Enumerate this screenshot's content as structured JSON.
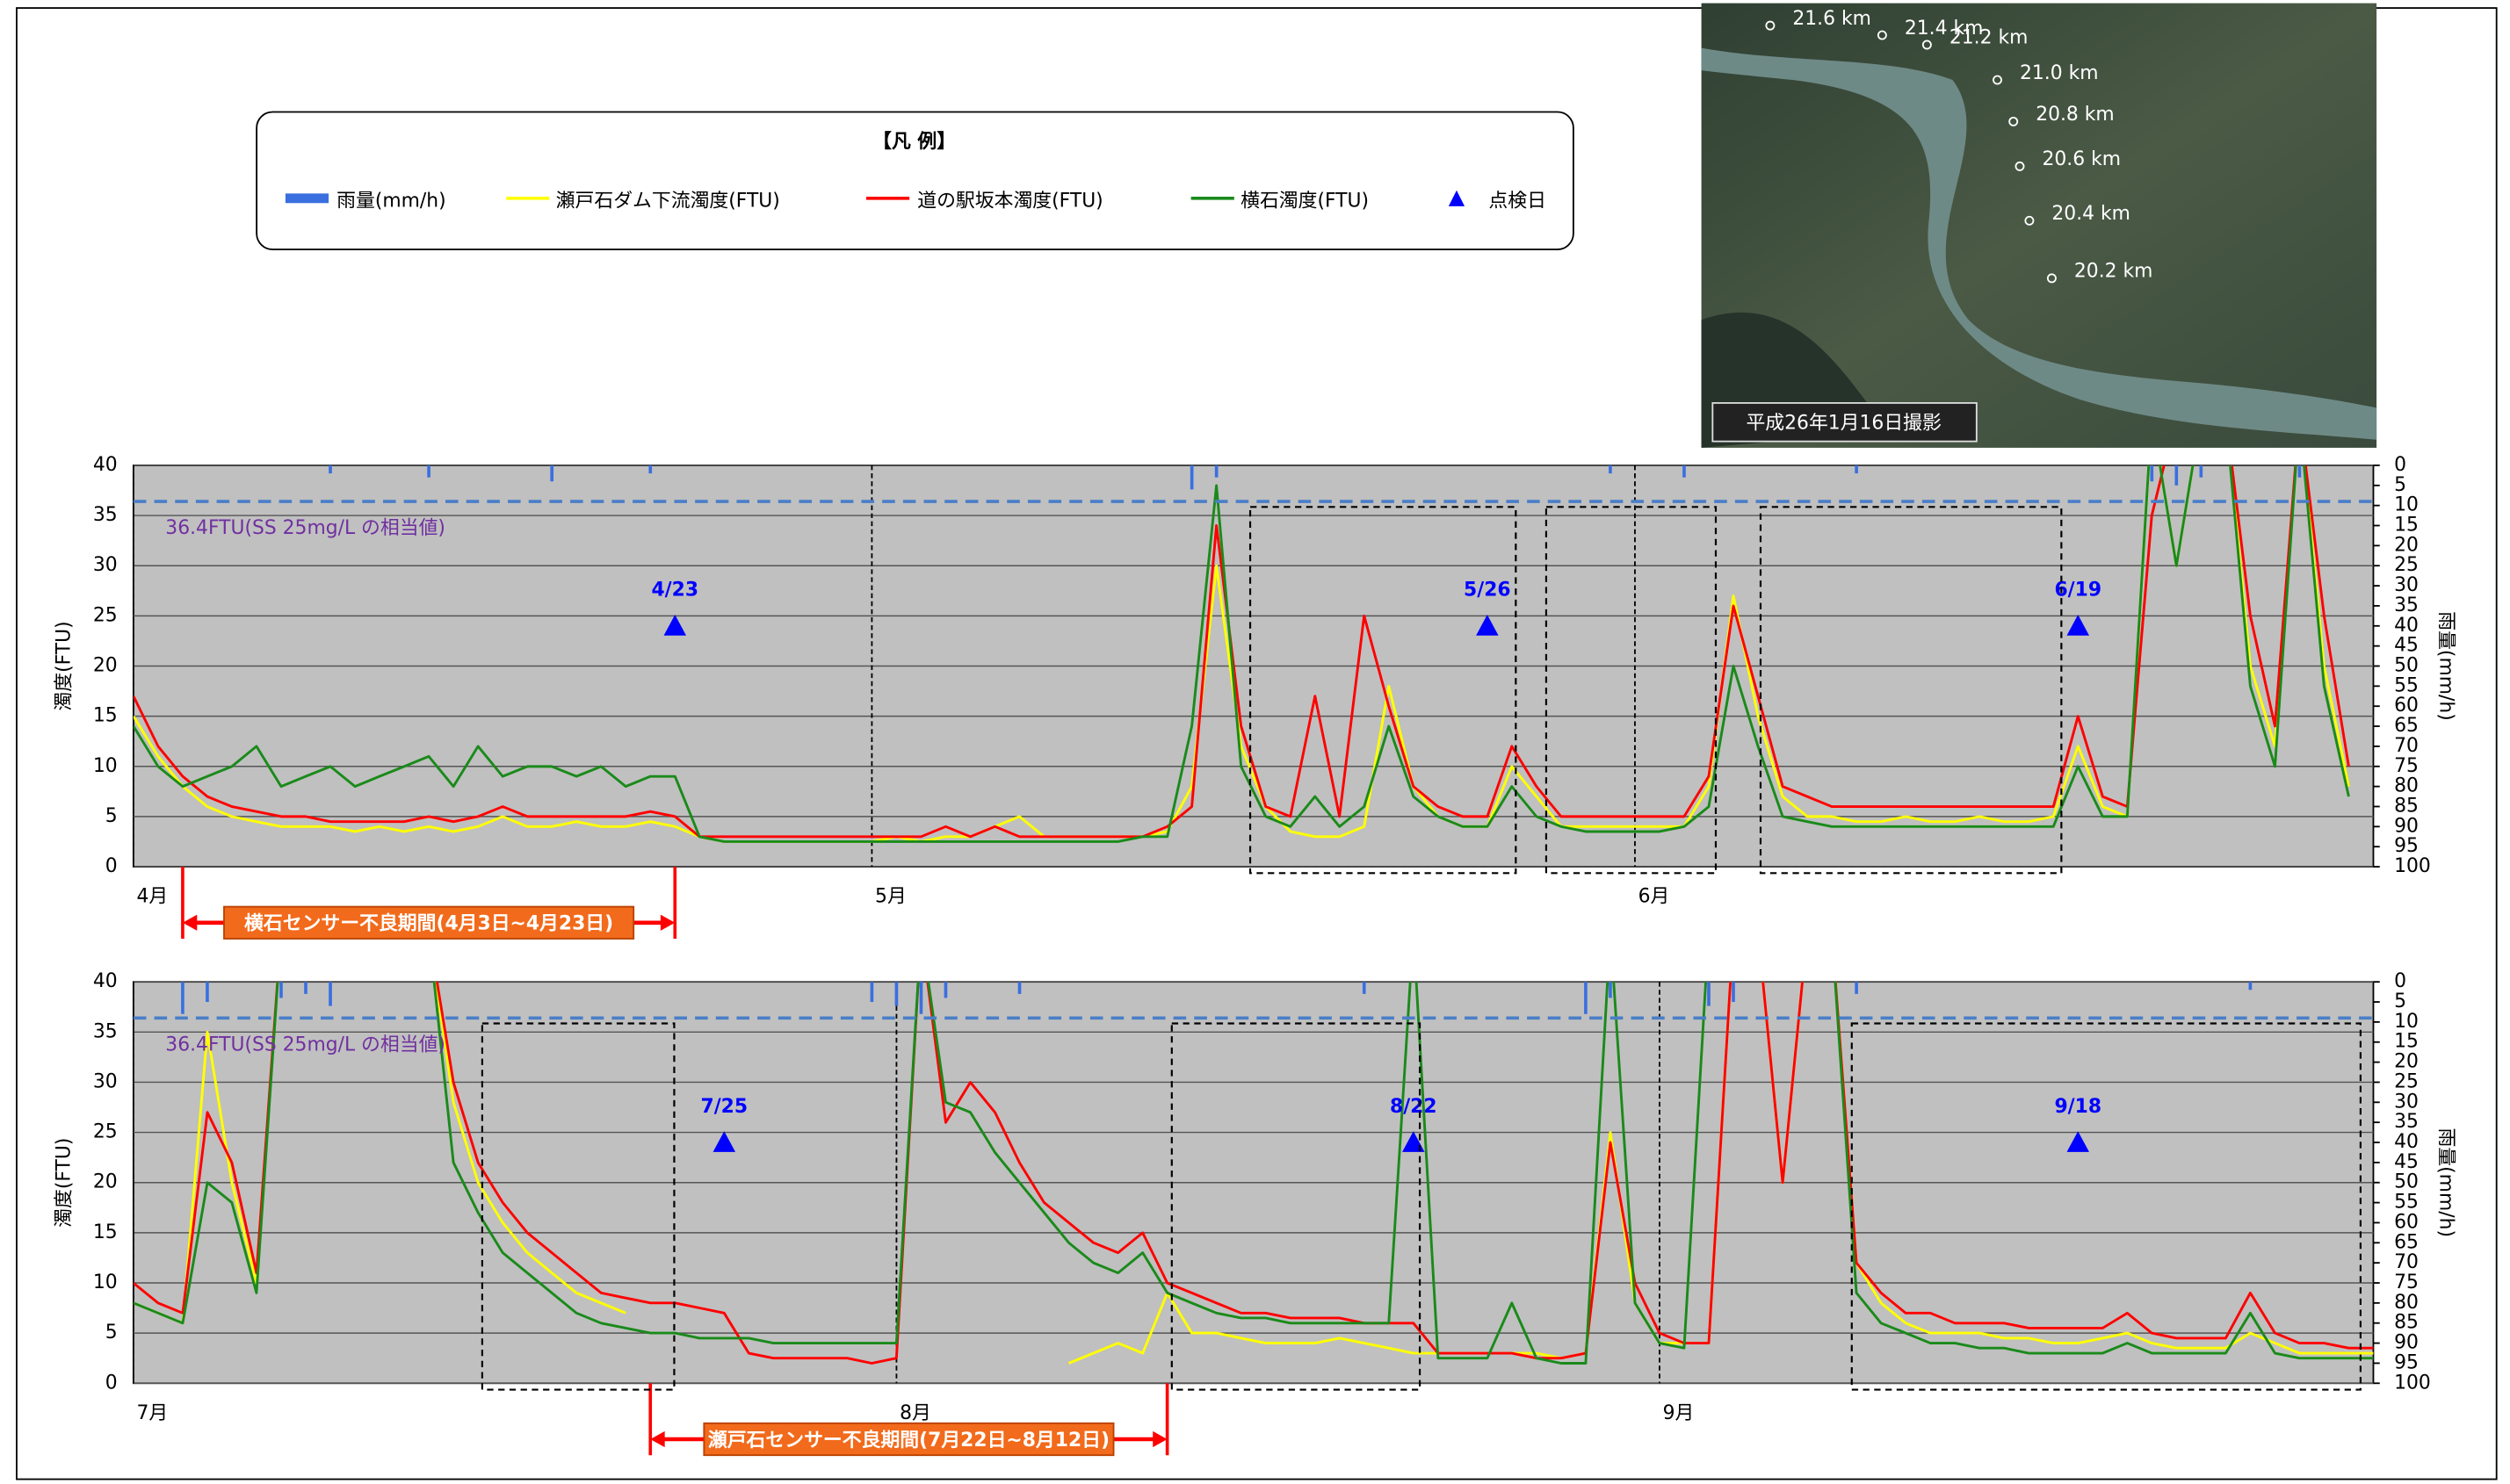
{
  "legend": {
    "title": "【凡 例】",
    "inspection": "点検日",
    "inspection_color": "#0000ff"
  },
  "photo": {
    "caption": "平成26年1月16日撮影",
    "markers": [
      "21.6 km",
      "21.4 km",
      "21.2 km",
      "21.0 km",
      "20.8 km",
      "20.6 km",
      "20.4 km",
      "20.2 km"
    ]
  },
  "chart_data": [
    {
      "type": "line",
      "y_label": "濁度(FTU)",
      "y2_label": "雨量(mm/h)",
      "xlim": [
        0,
        91
      ],
      "xticks": [
        {
          "value": 0,
          "label": "4月"
        },
        {
          "value": 30,
          "label": "5月"
        },
        {
          "value": 61,
          "label": "6月"
        }
      ],
      "ylim": [
        0,
        40
      ],
      "yticks": [
        0,
        5,
        10,
        15,
        20,
        25,
        30,
        35,
        40
      ],
      "y2lim": [
        100,
        0
      ],
      "y2ticks": [
        0,
        5,
        10,
        15,
        20,
        25,
        30,
        35,
        40,
        45,
        50,
        55,
        60,
        65,
        70,
        75,
        80,
        85,
        90,
        95,
        100
      ],
      "grid": true,
      "reference": {
        "value": 36.4,
        "label": "36.4FTU(SS 25mg/L の相当値)",
        "color": "#4a7ec8"
      },
      "inspections": [
        {
          "x": 22,
          "y": 24,
          "label": "4/23"
        },
        {
          "x": 55,
          "y": 24,
          "label": "5/26"
        },
        {
          "x": 79,
          "y": 24,
          "label": "6/19"
        }
      ],
      "annotation": {
        "text": "横石センサー不良期間(4月3日~4月23日)",
        "span": [
          2,
          22
        ]
      },
      "x": [
        0,
        1,
        2,
        3,
        4,
        5,
        6,
        7,
        8,
        9,
        10,
        11,
        12,
        13,
        14,
        15,
        16,
        17,
        18,
        19,
        20,
        21,
        22,
        23,
        24,
        25,
        26,
        27,
        28,
        29,
        30,
        31,
        32,
        33,
        34,
        35,
        36,
        37,
        38,
        39,
        40,
        41,
        42,
        43,
        44,
        45,
        46,
        47,
        48,
        49,
        50,
        51,
        52,
        53,
        54,
        55,
        56,
        57,
        58,
        59,
        60,
        61,
        62,
        63,
        64,
        65,
        66,
        67,
        68,
        69,
        70,
        71,
        72,
        73,
        74,
        75,
        76,
        77,
        78,
        79,
        80,
        81,
        82,
        83,
        84,
        85,
        86,
        87,
        88,
        89,
        90
      ],
      "series": [
        {
          "name": "雨量(mm/h)",
          "color": "#3a6fe0",
          "axis": "y2",
          "values": [
            0,
            0,
            0,
            0,
            0,
            0,
            0,
            0,
            2,
            0,
            0,
            0,
            3,
            0,
            0,
            0,
            0,
            4,
            0,
            0,
            0,
            2,
            0,
            0,
            0,
            0,
            0,
            0,
            0,
            0,
            0,
            0,
            0,
            0,
            0,
            0,
            0,
            0,
            0,
            0,
            0,
            0,
            0,
            6,
            3,
            0,
            0,
            0,
            0,
            0,
            0,
            0,
            0,
            0,
            0,
            0,
            0,
            0,
            0,
            0,
            2,
            0,
            0,
            3,
            0,
            0,
            0,
            0,
            0,
            0,
            2,
            0,
            0,
            0,
            0,
            0,
            0,
            0,
            0,
            0,
            0,
            0,
            4,
            5,
            3,
            0,
            0,
            0,
            3,
            0,
            0
          ]
        },
        {
          "name": "瀬戸石ダム下流濁度(FTU)",
          "color": "#ffff00",
          "values": [
            15,
            11,
            8,
            6,
            5,
            4.5,
            4,
            4,
            4,
            3.5,
            4,
            3.5,
            4,
            3.5,
            4,
            5,
            4,
            4,
            4.5,
            4,
            4,
            4.5,
            4,
            3,
            2.5,
            2.5,
            2.5,
            2.5,
            2.5,
            2.5,
            2.5,
            3,
            2.5,
            3,
            3,
            4,
            5,
            3,
            3,
            3,
            3,
            3,
            3.5,
            8,
            30,
            12,
            6,
            3.5,
            3,
            3,
            4,
            18,
            8,
            5,
            4,
            4,
            10,
            7,
            4,
            4,
            4,
            4,
            4,
            4,
            8,
            27,
            15,
            7,
            5,
            5,
            4.5,
            4.5,
            5,
            4.5,
            4.5,
            5,
            4.5,
            4.5,
            5,
            12,
            6,
            5,
            45,
            30,
            45,
            45,
            20,
            12,
            45,
            20,
            8
          ]
        },
        {
          "name": "道の駅坂本濁度(FTU)",
          "color": "#ff0000",
          "values": [
            17,
            12,
            9,
            7,
            6,
            5.5,
            5,
            5,
            4.5,
            4.5,
            4.5,
            4.5,
            5,
            4.5,
            5,
            6,
            5,
            5,
            5,
            5,
            5,
            5.5,
            5,
            3,
            3,
            3,
            3,
            3,
            3,
            3,
            3,
            3,
            3,
            4,
            3,
            4,
            3,
            3,
            3,
            3,
            3,
            3,
            4,
            6,
            34,
            14,
            6,
            5,
            17,
            5,
            25,
            16,
            8,
            6,
            5,
            5,
            12,
            8,
            5,
            5,
            5,
            5,
            5,
            5,
            9,
            26,
            17,
            8,
            7,
            6,
            6,
            6,
            6,
            6,
            6,
            6,
            6,
            6,
            6,
            15,
            7,
            6,
            35,
            45,
            45,
            45,
            25,
            14,
            45,
            25,
            10
          ]
        },
        {
          "name": "横石濁度(FTU)",
          "color": "#1a8a1a",
          "values": [
            14,
            10,
            8,
            9,
            10,
            12,
            8,
            9,
            10,
            8,
            9,
            10,
            11,
            8,
            12,
            9,
            10,
            10,
            9,
            10,
            8,
            9,
            9,
            3,
            2.5,
            2.5,
            2.5,
            2.5,
            2.5,
            2.5,
            2.5,
            2.5,
            2.5,
            2.5,
            2.5,
            2.5,
            2.5,
            2.5,
            2.5,
            2.5,
            2.5,
            3,
            3,
            14,
            38,
            10,
            5,
            4,
            7,
            4,
            6,
            14,
            7,
            5,
            4,
            4,
            8,
            5,
            4,
            3.5,
            3.5,
            3.5,
            3.5,
            4,
            6,
            20,
            12,
            5,
            4.5,
            4,
            4,
            4,
            4,
            4,
            4,
            4,
            4,
            4,
            4,
            10,
            5,
            5,
            45,
            30,
            45,
            45,
            18,
            10,
            45,
            18,
            7
          ]
        }
      ]
    },
    {
      "type": "line",
      "y_label": "濁度(FTU)",
      "y2_label": "雨量(mm/h)",
      "xlim": [
        0,
        91
      ],
      "xticks": [
        {
          "value": 0,
          "label": "7月"
        },
        {
          "value": 31,
          "label": "8月"
        },
        {
          "value": 62,
          "label": "9月"
        }
      ],
      "ylim": [
        0,
        40
      ],
      "yticks": [
        0,
        5,
        10,
        15,
        20,
        25,
        30,
        35,
        40
      ],
      "y2lim": [
        100,
        0
      ],
      "y2ticks": [
        0,
        5,
        10,
        15,
        20,
        25,
        30,
        35,
        40,
        45,
        50,
        55,
        60,
        65,
        70,
        75,
        80,
        85,
        90,
        95,
        100
      ],
      "grid": true,
      "reference": {
        "value": 36.4,
        "label": "36.4FTU(SS 25mg/L の相当値)",
        "color": "#4a7ec8"
      },
      "inspections": [
        {
          "x": 24,
          "y": 24,
          "label": "7/25"
        },
        {
          "x": 52,
          "y": 24,
          "label": "8/22"
        },
        {
          "x": 79,
          "y": 24,
          "label": "9/18"
        }
      ],
      "annotation": {
        "text": "瀬戸石センサー不良期間(7月22日~8月12日)",
        "span": [
          21,
          42
        ]
      },
      "x": [
        0,
        1,
        2,
        3,
        4,
        5,
        6,
        7,
        8,
        9,
        10,
        11,
        12,
        13,
        14,
        15,
        16,
        17,
        18,
        19,
        20,
        21,
        22,
        23,
        24,
        25,
        26,
        27,
        28,
        29,
        30,
        31,
        32,
        33,
        34,
        35,
        36,
        37,
        38,
        39,
        40,
        41,
        42,
        43,
        44,
        45,
        46,
        47,
        48,
        49,
        50,
        51,
        52,
        53,
        54,
        55,
        56,
        57,
        58,
        59,
        60,
        61,
        62,
        63,
        64,
        65,
        66,
        67,
        68,
        69,
        70,
        71,
        72,
        73,
        74,
        75,
        76,
        77,
        78,
        79,
        80,
        81,
        82,
        83,
        84,
        85,
        86,
        87,
        88,
        89,
        90,
        91
      ],
      "series": [
        {
          "name": "雨量(mm/h)",
          "color": "#3a6fe0",
          "axis": "y2",
          "values": [
            0,
            0,
            8,
            5,
            0,
            0,
            4,
            3,
            6,
            0,
            0,
            0,
            0,
            0,
            0,
            0,
            0,
            0,
            0,
            0,
            0,
            0,
            0,
            0,
            0,
            0,
            0,
            0,
            0,
            0,
            5,
            6,
            8,
            4,
            0,
            0,
            3,
            0,
            0,
            0,
            0,
            0,
            0,
            0,
            0,
            0,
            0,
            0,
            0,
            0,
            3,
            0,
            0,
            0,
            0,
            0,
            0,
            0,
            0,
            8,
            4,
            0,
            0,
            0,
            6,
            5,
            0,
            0,
            0,
            0,
            3,
            0,
            0,
            0,
            0,
            0,
            0,
            0,
            0,
            0,
            0,
            0,
            0,
            0,
            0,
            0,
            2,
            0,
            0,
            0,
            0,
            0
          ]
        },
        {
          "name": "瀬戸石ダム下流濁度(FTU)",
          "color": "#ffff00",
          "values": [
            8,
            7,
            6,
            35,
            20,
            10,
            45,
            45,
            45,
            45,
            45,
            45,
            45,
            28,
            20,
            16,
            13,
            11,
            9,
            8,
            7,
            null,
            null,
            null,
            null,
            null,
            null,
            null,
            null,
            null,
            null,
            null,
            null,
            null,
            null,
            null,
            null,
            null,
            2,
            3,
            4,
            3,
            9,
            5,
            5,
            4.5,
            4,
            4,
            4,
            4.5,
            4,
            3.5,
            3,
            3,
            3,
            3,
            3,
            3,
            2.5,
            3,
            25,
            8,
            4,
            4,
            4,
            45,
            45,
            20,
            45,
            45,
            12,
            8,
            6,
            5,
            5,
            5,
            4.5,
            4.5,
            4,
            4,
            4.5,
            5,
            4,
            3.5,
            3.5,
            3.5,
            5,
            4,
            3,
            3,
            3,
            3
          ]
        },
        {
          "name": "道の駅坂本濁度(FTU)",
          "color": "#ff0000",
          "values": [
            10,
            8,
            7,
            27,
            22,
            11,
            45,
            45,
            45,
            45,
            45,
            45,
            45,
            30,
            22,
            18,
            15,
            13,
            11,
            9,
            8.5,
            8,
            8,
            7.5,
            7,
            3,
            2.5,
            2.5,
            2.5,
            2.5,
            2,
            2.5,
            45,
            26,
            30,
            27,
            22,
            18,
            16,
            14,
            13,
            15,
            10,
            9,
            8,
            7,
            7,
            6.5,
            6.5,
            6.5,
            6,
            6,
            6,
            3,
            3,
            3,
            3,
            2.5,
            2.5,
            3,
            24,
            10,
            5,
            4,
            4,
            45,
            45,
            20,
            45,
            45,
            12,
            9,
            7,
            7,
            6,
            6,
            6,
            5.5,
            5.5,
            5.5,
            5.5,
            7,
            5,
            4.5,
            4.5,
            4.5,
            9,
            5,
            4,
            4,
            3.5,
            3.5
          ]
        },
        {
          "name": "横石濁度(FTU)",
          "color": "#1a8a1a",
          "values": [
            8,
            7,
            6,
            20,
            18,
            9,
            45,
            45,
            45,
            45,
            45,
            45,
            45,
            22,
            17,
            13,
            11,
            9,
            7,
            6,
            5.5,
            5,
            5,
            4.5,
            4.5,
            4.5,
            4,
            4,
            4,
            4,
            4,
            4,
            45,
            28,
            27,
            23,
            20,
            17,
            14,
            12,
            11,
            13,
            9,
            8,
            7,
            6.5,
            6.5,
            6,
            6,
            6,
            6,
            6,
            45,
            2.5,
            2.5,
            2.5,
            8,
            2.5,
            2,
            2,
            45,
            8,
            4,
            3.5,
            45,
            45,
            45,
            45,
            45,
            45,
            9,
            6,
            5,
            4,
            4,
            3.5,
            3.5,
            3,
            3,
            3,
            3,
            4,
            3,
            3,
            3,
            3,
            7,
            3,
            2.5,
            2.5,
            2.5,
            2.5
          ]
        }
      ]
    }
  ]
}
